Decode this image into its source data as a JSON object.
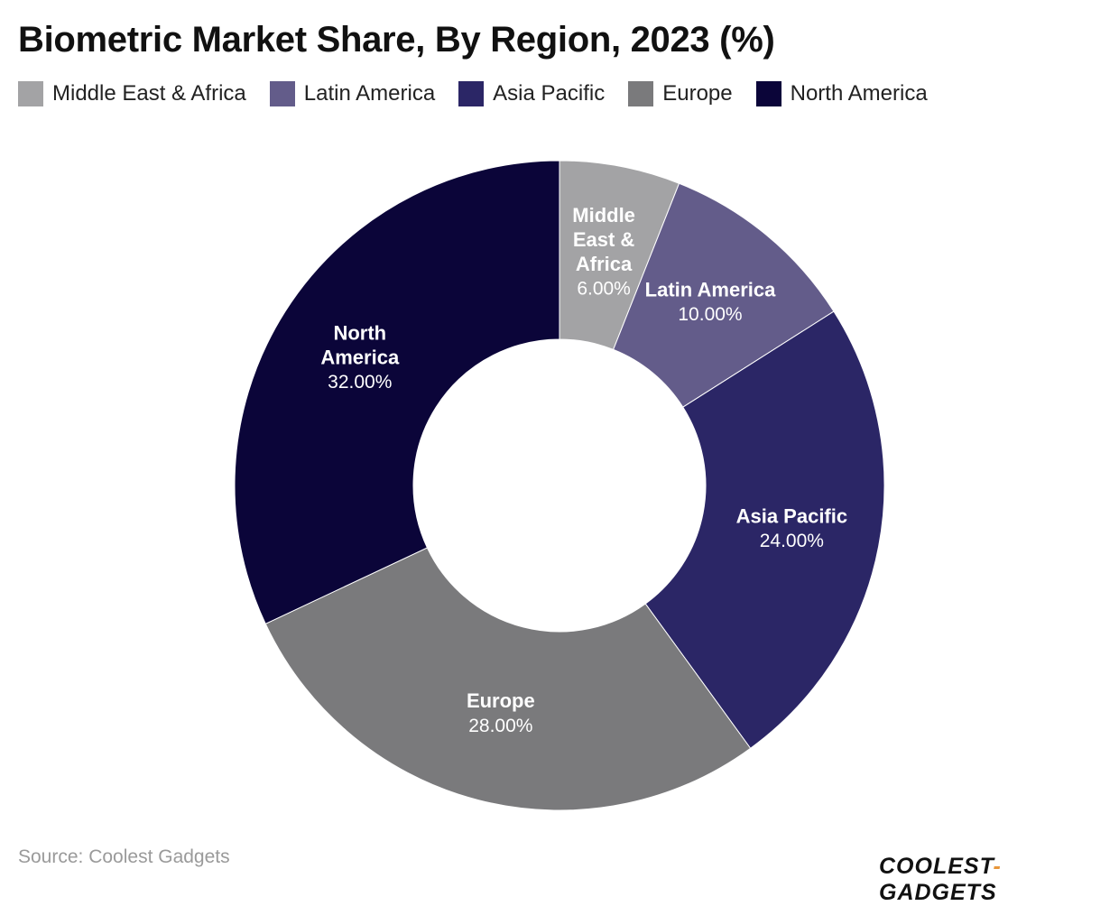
{
  "title": "Biometric Market Share, By Region, 2023 (%)",
  "legend": [
    {
      "label": "Middle East & Africa",
      "color": "#a3a3a5"
    },
    {
      "label": "Latin America",
      "color": "#635c8a"
    },
    {
      "label": "Asia Pacific",
      "color": "#2b2666"
    },
    {
      "label": "Europe",
      "color": "#7a7a7c"
    },
    {
      "label": "North America",
      "color": "#0b0539"
    }
  ],
  "chart_data": {
    "type": "pie",
    "donut": true,
    "title": "Biometric Market Share, By Region, 2023 (%)",
    "categories": [
      "Middle East & Africa",
      "Latin America",
      "Asia Pacific",
      "Europe",
      "North America"
    ],
    "values": [
      6.0,
      10.0,
      24.0,
      28.0,
      32.0
    ],
    "value_labels": [
      "6.00%",
      "10.00%",
      "24.00%",
      "28.00%",
      "32.00%"
    ],
    "slice_label_lines": [
      [
        "Middle",
        "East &",
        "Africa"
      ],
      [
        "Latin America"
      ],
      [
        "Asia Pacific"
      ],
      [
        "Europe"
      ],
      [
        "North",
        "America"
      ]
    ],
    "colors": [
      "#a3a3a5",
      "#635c8a",
      "#2b2666",
      "#7a7a7c",
      "#0b0539"
    ],
    "start": "top",
    "direction": "clockwise",
    "legend_position": "top-left"
  },
  "footer": {
    "source": "Source: Coolest Gadgets",
    "brand_left": "COOLEST",
    "brand_dash": "-",
    "brand_right": "GADGETS"
  }
}
